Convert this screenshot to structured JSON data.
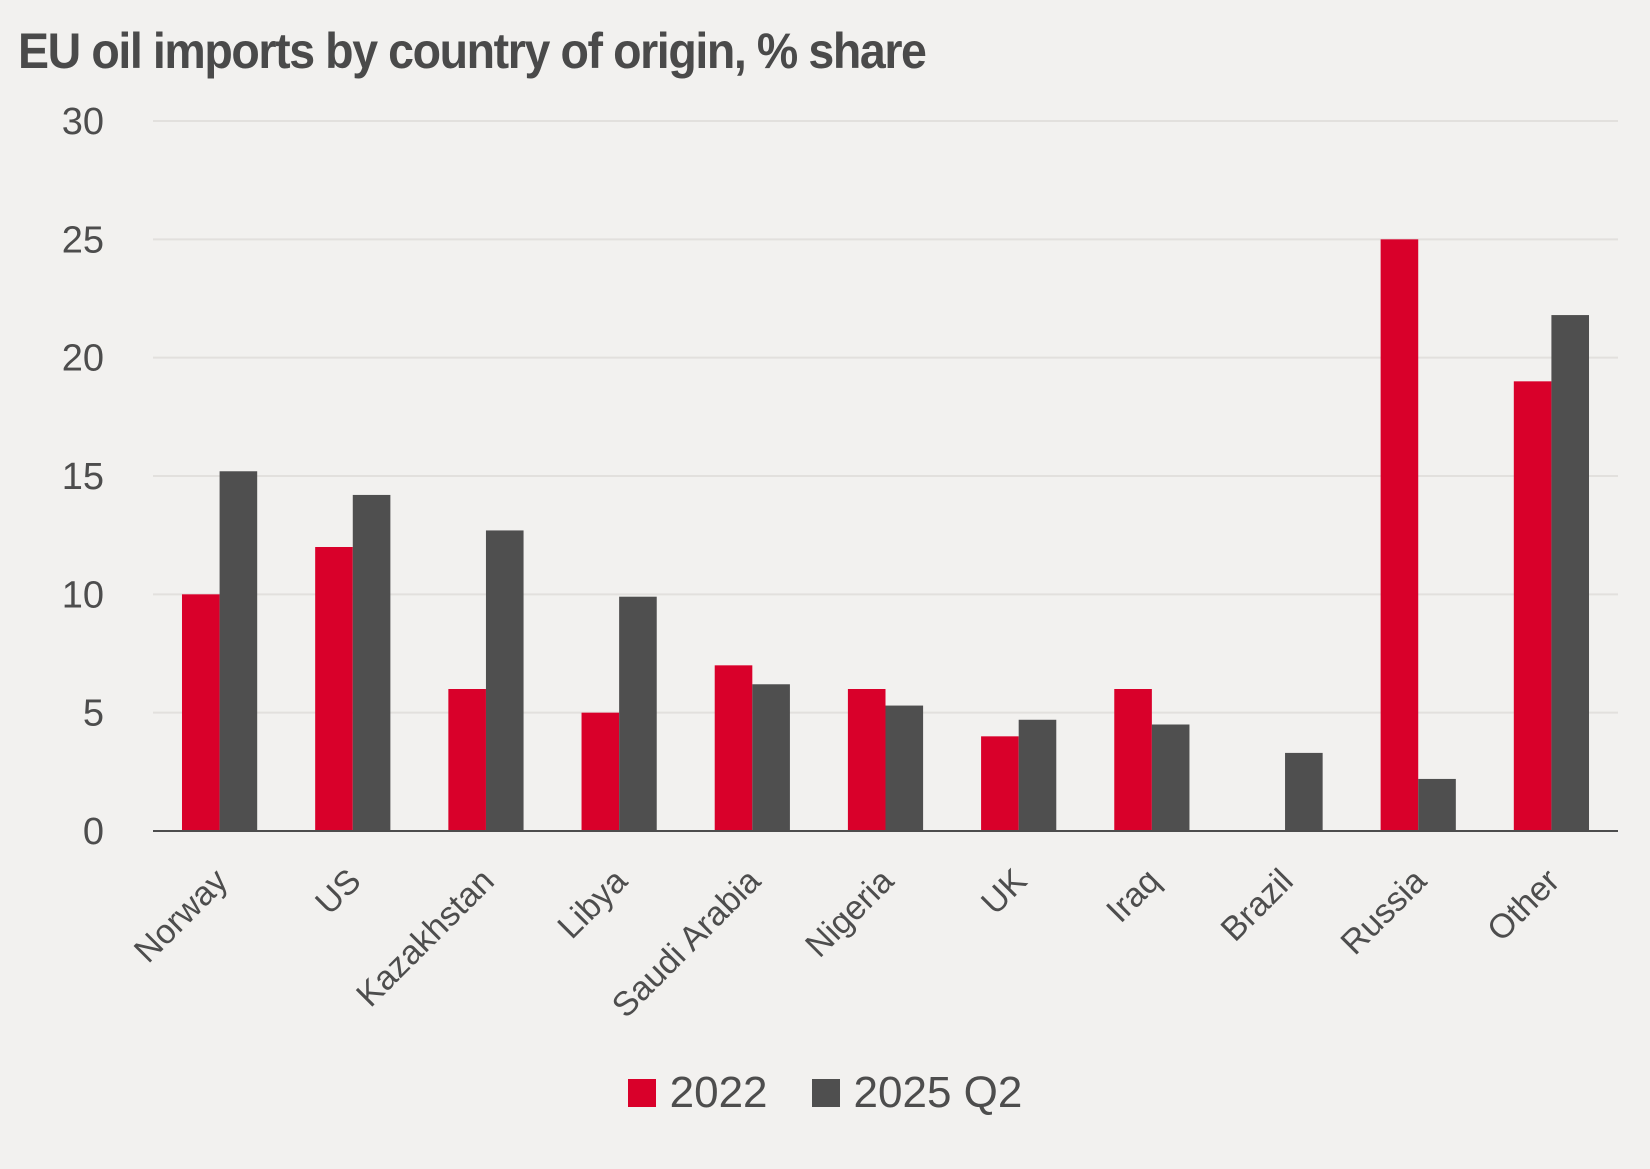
{
  "chart_data": {
    "type": "bar",
    "title": "EU oil imports by country of origin, % share",
    "categories": [
      "Norway",
      "US",
      "Kazakhstan",
      "Libya",
      "Saudi Arabia",
      "Nigeria",
      "UK",
      "Iraq",
      "Brazil",
      "Russia",
      "Other"
    ],
    "series": [
      {
        "name": "2022",
        "color": "#d9002a",
        "values": [
          10,
          12,
          6,
          5,
          7,
          6,
          4,
          6,
          null,
          25,
          19
        ]
      },
      {
        "name": "2025 Q2",
        "color": "#4f4f4f",
        "values": [
          15.2,
          14.2,
          12.7,
          9.9,
          6.2,
          5.3,
          4.7,
          4.5,
          3.3,
          2.2,
          21.8
        ]
      }
    ],
    "ylim": [
      0,
      30
    ],
    "yticks": [
      "0",
      "5",
      "10",
      "15",
      "20",
      "25",
      "30"
    ],
    "grid": true,
    "legend": "bottom"
  }
}
